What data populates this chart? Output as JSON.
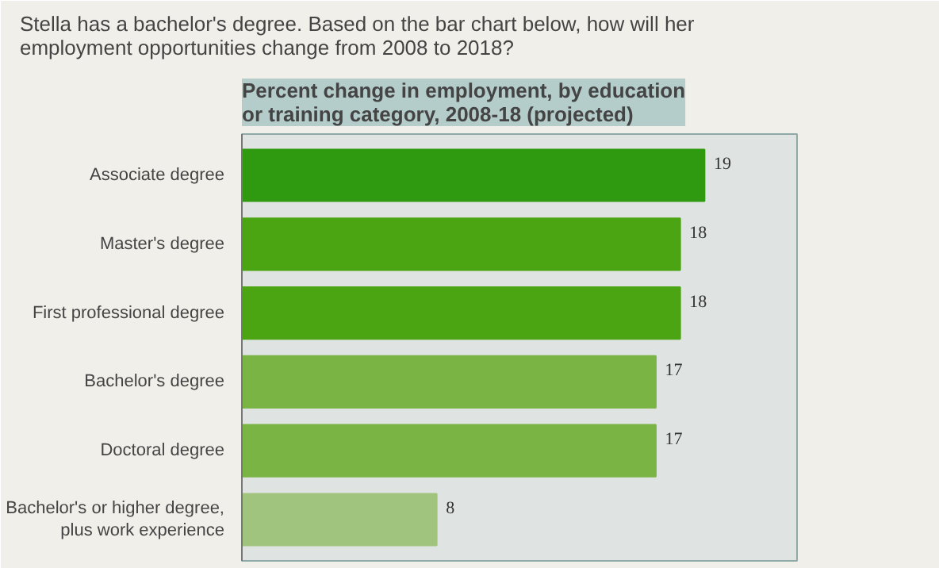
{
  "chart_data": {
    "type": "bar",
    "orientation": "horizontal",
    "title": "Percent change in employment, by education\nor training category, 2008-18 (projected)",
    "annotations": [
      "Stella has a bachelor's degree. Based on the bar chart below, how will her\nemployment opportunities change from 2008 to 2018?"
    ],
    "categories": [
      "Associate degree",
      "Master's degree",
      "First professional degree",
      "Bachelor's degree",
      "Doctoral degree",
      "Bachelor's or higher degree,\nplus work experience"
    ],
    "values": [
      19,
      18,
      18,
      17,
      17,
      8
    ],
    "colors": [
      "#2f9a10",
      "#4ba412",
      "#4ba412",
      "#7ab445",
      "#7ab445",
      "#a0c47e"
    ],
    "data_labels": true
  }
}
